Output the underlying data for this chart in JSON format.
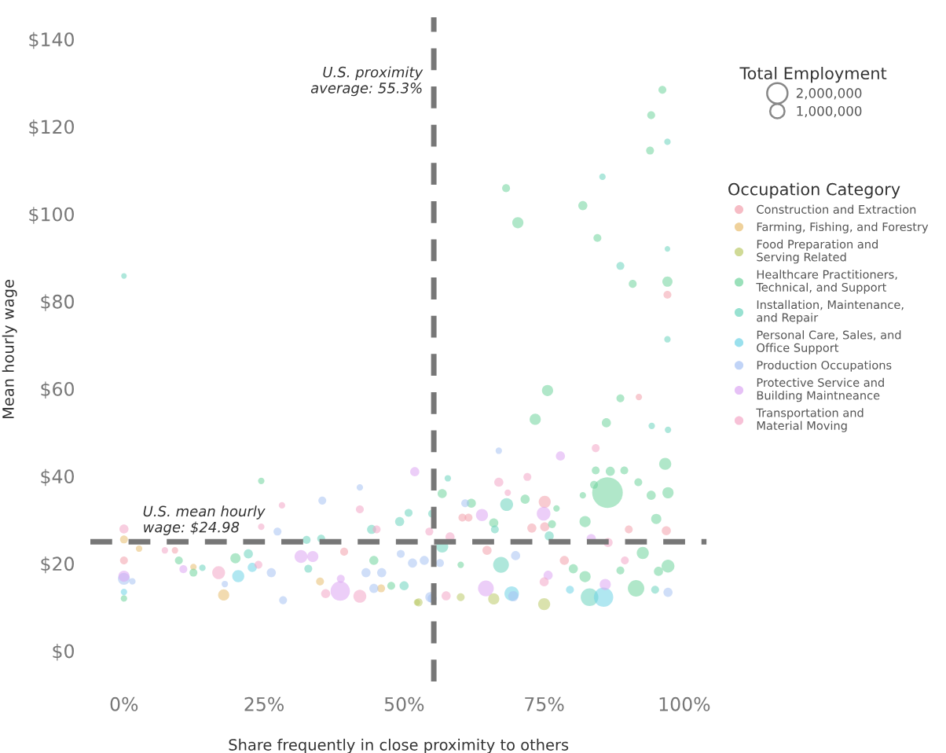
{
  "chart_data": {
    "type": "bubble",
    "xlabel": "Share frequently in close proximity to others",
    "ylabel": "Mean hourly wage",
    "legend_title": "Occupation Category",
    "legend": "right",
    "annotations": [
      "Total Employment"
    ],
    "size_legend": [
      {
        "value": 2000000,
        "label": "2,000,000"
      },
      {
        "value": 1000000,
        "label": "1,000,000"
      }
    ],
    "xlim": [
      -6,
      104
    ],
    "xticks": [
      {
        "value": 0,
        "label": "0%"
      },
      {
        "value": 25,
        "label": "25%"
      },
      {
        "value": 50,
        "label": "50%"
      },
      {
        "value": 75,
        "label": "75%"
      },
      {
        "value": 100,
        "label": "100%"
      }
    ],
    "ylim": [
      -7,
      145
    ],
    "yticks": [
      {
        "value": 0,
        "label": "$0"
      },
      {
        "value": 20,
        "label": "$20"
      },
      {
        "value": 40,
        "label": "$40"
      },
      {
        "value": 60,
        "label": "$60"
      },
      {
        "value": 80,
        "label": "$80"
      },
      {
        "value": 100,
        "label": "$100"
      },
      {
        "value": 120,
        "label": "$120"
      },
      {
        "value": 140,
        "label": "$140"
      }
    ],
    "grid": false,
    "ref_lines": [
      {
        "axis": "y",
        "value": 24.98,
        "label": "U.S. mean hourly\nwage: $24.98",
        "color": "#777777",
        "line_style": "dashed"
      },
      {
        "axis": "x",
        "value": 55.3,
        "label": "U.S. proximity\naverage: 55.3%",
        "color": "#777777",
        "line_style": "dashed"
      }
    ],
    "series": [
      {
        "name": "Construction and Extraction",
        "color": "#f2a0ac",
        "x": [
          0,
          9.1,
          39.3,
          60.4,
          61.5,
          72.8,
          75.1,
          75.1,
          78.6,
          90.1,
          96.8,
          97,
          91.9,
          64.8
        ],
        "values": [
          20.7,
          23,
          22.7,
          30.5,
          30.5,
          28.1,
          28.4,
          34.1,
          20.7,
          27.8,
          27.5,
          81.5,
          58.1,
          23
        ],
        "sizes": [
          300000,
          200000,
          300000,
          300000,
          300000,
          400000,
          400000,
          700000,
          400000,
          300000,
          400000,
          300000,
          200000,
          400000
        ]
      },
      {
        "name": "Farming, Fishing, and Forestry",
        "color": "#e8bd70",
        "x": [
          0,
          2.7,
          12.4,
          17.8,
          35,
          45.9
        ],
        "values": [
          25.5,
          23.4,
          19.2,
          12.8,
          15.9,
          14.3
        ],
        "sizes": [
          300000,
          200000,
          200000,
          600000,
          300000,
          300000
        ]
      },
      {
        "name": "Food Preparation and\nServing Related",
        "color": "#bccb6a",
        "x": [
          52.3,
          52.6,
          60.1,
          66,
          75
        ],
        "values": [
          11.1,
          11.1,
          12.3,
          11.9,
          10.7
        ],
        "sizes": [
          200000,
          300000,
          300000,
          600000,
          700000
        ]
      },
      {
        "name": "Healthcare Practitioners,\nTechnical, and Support",
        "color": "#6fd39c",
        "x": [
          9.8,
          12.4,
          19.9,
          24.5,
          44.6,
          47.7,
          56.8,
          60.1,
          62,
          66,
          71.6,
          73.4,
          76.4,
          77.2,
          80.2,
          81.9,
          82.3,
          82.3,
          83.9,
          84.2,
          86.8,
          89.3,
          86.1,
          86.3,
          88.6,
          88.6,
          91.4,
          92.6,
          91.8,
          94.1,
          95,
          96.6,
          97.1,
          97.1,
          95.4,
          96.1,
          94.1,
          93.9,
          68.2,
          70.3,
          81.9,
          84.5,
          90.8,
          97,
          75.6,
          0
        ],
        "values": [
          20.7,
          17.9,
          21.2,
          38.9,
          20.7,
          14.9,
          36.0,
          19.7,
          33.8,
          29.3,
          34.7,
          53.0,
          29.0,
          32.6,
          18.8,
          35.6,
          29.6,
          17.0,
          38,
          41.3,
          41.1,
          41.3,
          52.2,
          36.2,
          57.8,
          18.4,
          14.3,
          22.4,
          38.6,
          35.6,
          30.2,
          42.8,
          36.2,
          19.4,
          18.2,
          128.4,
          122.6,
          114.5,
          105.9,
          98.0,
          101.9,
          94.5,
          84.0,
          84.5,
          59.6,
          12.0
        ],
        "sizes": [
          300000,
          300000,
          500000,
          200000,
          400000,
          300000,
          400000,
          200000,
          400000,
          400000,
          400000,
          600000,
          300000,
          200000,
          400000,
          200000,
          600000,
          600000,
          300000,
          300000,
          400000,
          300000,
          400000,
          4500000,
          300000,
          300000,
          1300000,
          700000,
          300000,
          400000,
          500000,
          700000,
          600000,
          800000,
          400000,
          300000,
          300000,
          300000,
          300000,
          600000,
          400000,
          300000,
          300000,
          500000,
          600000,
          200000
        ]
      },
      {
        "name": "Installation, Maintenance,\nand Repair",
        "color": "#6cd4bd",
        "x": [
          14,
          22.2,
          32.6,
          35.2,
          32.9,
          44.2,
          49.2,
          50.8,
          50,
          55,
          57.8,
          56.8,
          66.2,
          68.3,
          67.3,
          75.9,
          83.1,
          94.2,
          97.1,
          94.8,
          97,
          85.4,
          88.6,
          97,
          97,
          0
        ],
        "values": [
          19,
          22.2,
          25.4,
          25.7,
          18.8,
          27.8,
          29.6,
          31.6,
          14.9,
          31.4,
          39.5,
          23.9,
          27.8,
          33.5,
          19.7,
          26.3,
          12.3,
          51.5,
          50.6,
          14,
          116.5,
          108.5,
          88.1,
          92.0,
          71.3,
          85.8
        ],
        "sizes": [
          200000,
          400000,
          300000,
          300000,
          300000,
          400000,
          400000,
          300000,
          400000,
          300000,
          200000,
          700000,
          300000,
          800000,
          1200000,
          400000,
          1500000,
          200000,
          200000,
          300000,
          200000,
          200000,
          300000,
          150000,
          200000,
          150000
        ]
      },
      {
        "name": "Personal Care, Sales, and\nOffice Support",
        "color": "#6fd3e6",
        "x": [
          0,
          20.4,
          22.9,
          69.2,
          79.6,
          85.6
        ],
        "values": [
          13.5,
          17.1,
          19.1,
          13.1,
          14,
          12.3
        ],
        "sizes": [
          200000,
          700000,
          400000,
          1000000,
          300000,
          1800000
        ]
      },
      {
        "name": "Production Occupations",
        "color": "#a7c2f3",
        "x": [
          0,
          1.5,
          18,
          26.3,
          28.4,
          27.4,
          35.4,
          42.1,
          43.2,
          46,
          44.6,
          49.4,
          54.7,
          51.5,
          55,
          53.6,
          56.4,
          60.9,
          66.9,
          69.5,
          69.9,
          97.1
        ],
        "values": [
          16.5,
          15.9,
          15.3,
          17.9,
          11.6,
          27.3,
          34.4,
          37.4,
          17.9,
          17.9,
          14.3,
          22.2,
          12.3,
          20.1,
          12,
          20.7,
          20.1,
          33.8,
          45.8,
          12.5,
          21.8,
          13.4
        ],
        "sizes": [
          700000,
          200000,
          200000,
          400000,
          300000,
          300000,
          300000,
          200000,
          400000,
          400000,
          400000,
          300000,
          500000,
          400000,
          400000,
          400000,
          300000,
          300000,
          200000,
          500000,
          400000,
          400000
        ]
      },
      {
        "name": "Protective Service and\nBuilding Maintneance",
        "color": "#dca6f2",
        "x": [
          0,
          10.6,
          31.6,
          33.7,
          38.7,
          38.6,
          51.9,
          63.9,
          64.6,
          74.9,
          75.7,
          77.9,
          83.4,
          85.9
        ],
        "values": [
          17.1,
          18.7,
          21.6,
          21.6,
          16.5,
          13.7,
          41.0,
          31.1,
          14.3,
          31.4,
          17.3,
          44.6,
          25.7,
          15.2
        ],
        "sizes": [
          600000,
          300000,
          800000,
          600000,
          300000,
          1800000,
          400000,
          700000,
          1200000,
          900000,
          400000,
          400000,
          400000,
          600000
        ]
      },
      {
        "name": "Transportation and\nMaterial Moving",
        "color": "#f3a6c6",
        "x": [
          0,
          7.3,
          16.9,
          24,
          24.5,
          28.2,
          36,
          42.1,
          42.1,
          45.1,
          54.5,
          57.5,
          58.2,
          66.9,
          68.5,
          72,
          75,
          84.2,
          86.4,
          89.4
        ],
        "values": [
          27.9,
          23,
          17.9,
          19.7,
          28.4,
          33.3,
          13.1,
          12.5,
          32.4,
          27.8,
          27.3,
          12.6,
          26.1,
          38.6,
          36.2,
          39.8,
          15.8,
          46.4,
          24.8,
          20.7
        ],
        "sizes": [
          400000,
          200000,
          800000,
          300000,
          200000,
          200000,
          400000,
          800000,
          300000,
          300000,
          300000,
          400000,
          400000,
          400000,
          200000,
          300000,
          400000,
          300000,
          400000,
          300000
        ]
      }
    ]
  }
}
